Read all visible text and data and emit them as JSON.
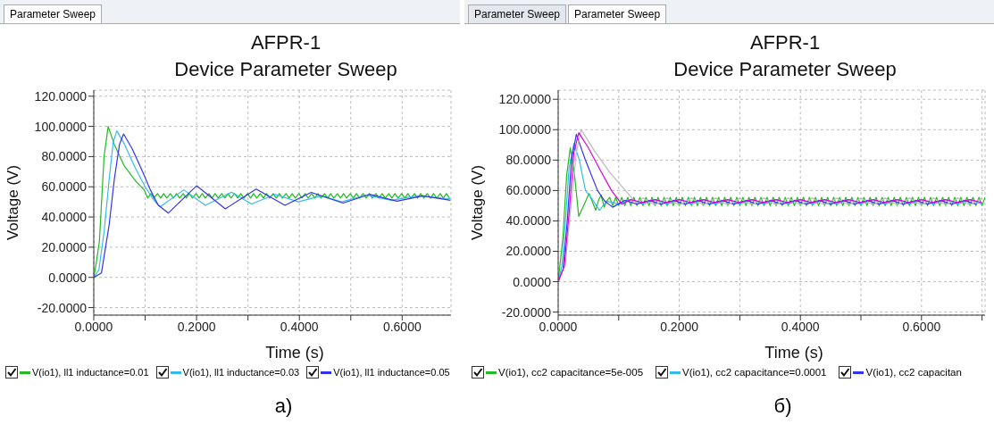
{
  "chart_data": [
    {
      "type": "line",
      "title": "AFPR-1",
      "subtitle": "Device Parameter Sweep",
      "xlabel": "Time (s)",
      "ylabel": "Voltage (V)",
      "annotations": [
        "Parameter Sweep",
        "а)"
      ],
      "xlim": [
        0,
        0.695
      ],
      "ylim": [
        -25,
        124
      ],
      "xticks": [
        {
          "value": 0,
          "label": "0.0000"
        },
        {
          "value": 0.1,
          "label": null
        },
        {
          "value": 0.2,
          "label": "0.2000"
        },
        {
          "value": 0.3,
          "label": null
        },
        {
          "value": 0.4,
          "label": "0.4000"
        },
        {
          "value": 0.5,
          "label": null
        },
        {
          "value": 0.6,
          "label": "0.6000"
        }
      ],
      "yticks": [
        {
          "value": -20,
          "label": "-20.0000"
        },
        {
          "value": 0,
          "label": "0.0000"
        },
        {
          "value": 20,
          "label": "20.0000"
        },
        {
          "value": 40,
          "label": "40.0000"
        },
        {
          "value": 60,
          "label": "60.0000"
        },
        {
          "value": 80,
          "label": "80.0000"
        },
        {
          "value": 100,
          "label": "100.0000"
        },
        {
          "value": 120,
          "label": "120.0000"
        }
      ],
      "grid": true,
      "legend": "bottom",
      "marker": "none",
      "line_style": "solid",
      "series": [
        {
          "name": "V(io1), ll1 inductance=0.01",
          "color": "#22bb22",
          "x": [
            0,
            0.005,
            0.011,
            0.02,
            0.028,
            0.04,
            0.059,
            0.081,
            0.098,
            0.105,
            0.111,
            0.117,
            0.124,
            0.13,
            0.136,
            0.142,
            0.149,
            0.155,
            0.161,
            0.167,
            0.174,
            0.18,
            0.186,
            0.192,
            0.199,
            0.205,
            0.211,
            0.217,
            0.224,
            0.23,
            0.236,
            0.242,
            0.249,
            0.255,
            0.261,
            0.267,
            0.274,
            0.28,
            0.286,
            0.292,
            0.299,
            0.305,
            0.311,
            0.317,
            0.324,
            0.33,
            0.336,
            0.342,
            0.349,
            0.355,
            0.361,
            0.367,
            0.374,
            0.38,
            0.386,
            0.392,
            0.399,
            0.405,
            0.411,
            0.417,
            0.424,
            0.43,
            0.436,
            0.442,
            0.449,
            0.455,
            0.461,
            0.467,
            0.474,
            0.48,
            0.486,
            0.492,
            0.499,
            0.505,
            0.511,
            0.517,
            0.524,
            0.53,
            0.536,
            0.542,
            0.549,
            0.555,
            0.561,
            0.567,
            0.574,
            0.58,
            0.586,
            0.592,
            0.599,
            0.605,
            0.611,
            0.617,
            0.624,
            0.63,
            0.636,
            0.642,
            0.649,
            0.655,
            0.661,
            0.667,
            0.674,
            0.68,
            0.686,
            0.692
          ],
          "values": [
            0,
            10,
            24,
            80,
            100,
            88,
            74,
            64,
            58,
            52.5,
            55.5,
            52.5,
            55.5,
            52.5,
            55.5,
            52.5,
            55.5,
            52.5,
            55.5,
            52.5,
            55.5,
            52.5,
            55.5,
            52.5,
            55.5,
            52.5,
            55.5,
            52.5,
            55.5,
            52.5,
            55.5,
            52.5,
            55.5,
            52.5,
            55.5,
            52.5,
            55.5,
            52.5,
            55.5,
            52.5,
            55.5,
            52.5,
            55.5,
            52.5,
            55.5,
            52.5,
            55.5,
            52.5,
            55.5,
            52.5,
            55.5,
            52.5,
            55.5,
            52.5,
            55.5,
            52.5,
            55.5,
            52.5,
            55.5,
            52.5,
            55.5,
            52.5,
            55.5,
            52.5,
            55.5,
            52.5,
            55.5,
            52.5,
            55.5,
            52.5,
            55.5,
            52.5,
            55.5,
            52.5,
            55.5,
            52.5,
            55.5,
            52.5,
            55.5,
            52.5,
            55.5,
            52.5,
            55.5,
            52.5,
            55.5,
            52.5,
            55.5,
            52.5,
            55.5,
            52.5,
            55.5,
            52.5,
            55.5,
            52.5,
            55.5,
            52.5,
            55.5,
            52.5,
            55.5,
            52.5,
            55.5,
            52.5,
            55.5,
            52.5
          ]
        },
        {
          "name": "V(io1), ll1 inductance=0.03",
          "color": "#33bbee",
          "x": [
            0,
            0.01,
            0.02,
            0.03,
            0.038,
            0.045,
            0.06,
            0.08,
            0.1,
            0.115,
            0.129,
            0.175,
            0.217,
            0.268,
            0.307,
            0.353,
            0.398,
            0.443,
            0.482,
            0.531,
            0.579,
            0.629,
            0.694
          ],
          "values": [
            0,
            5,
            30,
            65,
            90,
            97,
            88,
            73,
            60,
            52,
            46.7,
            58,
            47.7,
            56.5,
            48.6,
            55,
            50,
            54,
            50,
            54.5,
            51,
            54,
            52
          ]
        },
        {
          "name": "V(io1), ll1 inductance=0.05",
          "color": "#3333ee",
          "x": [
            0,
            0.015,
            0.03,
            0.04,
            0.05,
            0.058,
            0.075,
            0.095,
            0.11,
            0.125,
            0.145,
            0.2,
            0.256,
            0.316,
            0.372,
            0.423,
            0.485,
            0.536,
            0.59,
            0.64,
            0.694
          ],
          "values": [
            0,
            3,
            35,
            65,
            88,
            95,
            85,
            70,
            58,
            48,
            42.6,
            60.7,
            45.4,
            58.5,
            47.7,
            56.3,
            49.2,
            55,
            50.5,
            54,
            51
          ]
        }
      ]
    },
    {
      "type": "line",
      "title": "AFPR-1",
      "subtitle": "Device Parameter Sweep",
      "xlabel": "Time (s)",
      "ylabel": "Voltage (V)",
      "annotations": [
        "Parameter Sweep",
        "Parameter Sweep",
        "б)"
      ],
      "xlim": [
        0,
        0.705
      ],
      "ylim": [
        -22,
        126
      ],
      "xticks": [
        {
          "value": 0,
          "label": "0.0000"
        },
        {
          "value": 0.1,
          "label": null
        },
        {
          "value": 0.2,
          "label": "0.2000"
        },
        {
          "value": 0.3,
          "label": null
        },
        {
          "value": 0.4,
          "label": "0.4000"
        },
        {
          "value": 0.5,
          "label": null
        },
        {
          "value": 0.6,
          "label": "0.6000"
        },
        {
          "value": 0.7,
          "label": null
        }
      ],
      "yticks": [
        {
          "value": -20,
          "label": "-20.0000"
        },
        {
          "value": 0,
          "label": "0.0000"
        },
        {
          "value": 20,
          "label": "20.0000"
        },
        {
          "value": 40,
          "label": "40.0000"
        },
        {
          "value": 60,
          "label": "60.0000"
        },
        {
          "value": 80,
          "label": "80.0000"
        },
        {
          "value": 100,
          "label": "100.0000"
        },
        {
          "value": 120,
          "label": "120.0000"
        }
      ],
      "grid": true,
      "legend": "bottom",
      "marker": "none",
      "line_style": "solid",
      "series": [
        {
          "name": "V(io1), cc2 capacitance=5e-005",
          "color": "#22bb22",
          "x": [
            0,
            0.008,
            0.014,
            0.02,
            0.027,
            0.034,
            0.042,
            0.051,
            0.057,
            0.062,
            0.067,
            0.071,
            0.076,
            0.08,
            0.085,
            0.09,
            0.095,
            0.1,
            0.105,
            0.11,
            0.115,
            0.12,
            0.125,
            0.13,
            0.135,
            0.14,
            0.145,
            0.15,
            0.155,
            0.16,
            0.165,
            0.17,
            0.175,
            0.18,
            0.185,
            0.19,
            0.195,
            0.2,
            0.205,
            0.21,
            0.215,
            0.22,
            0.225,
            0.23,
            0.235,
            0.24,
            0.245,
            0.25,
            0.255,
            0.26,
            0.265,
            0.27,
            0.275,
            0.28,
            0.285,
            0.29,
            0.295,
            0.3,
            0.305,
            0.31,
            0.315,
            0.32,
            0.325,
            0.33,
            0.335,
            0.34,
            0.345,
            0.35,
            0.355,
            0.36,
            0.365,
            0.37,
            0.375,
            0.38,
            0.385,
            0.39,
            0.395,
            0.4,
            0.405,
            0.41,
            0.415,
            0.42,
            0.425,
            0.43,
            0.435,
            0.44,
            0.445,
            0.45,
            0.455,
            0.46,
            0.465,
            0.47,
            0.475,
            0.48,
            0.485,
            0.49,
            0.495,
            0.5,
            0.505,
            0.51,
            0.515,
            0.52,
            0.525,
            0.53,
            0.535,
            0.54,
            0.545,
            0.55,
            0.555,
            0.56,
            0.565,
            0.57,
            0.575,
            0.58,
            0.585,
            0.59,
            0.595,
            0.6,
            0.605,
            0.61,
            0.615,
            0.62,
            0.625,
            0.63,
            0.635,
            0.64,
            0.645,
            0.65,
            0.655,
            0.66,
            0.665,
            0.67,
            0.675,
            0.68,
            0.685,
            0.69,
            0.695,
            0.7,
            0.705
          ],
          "values": [
            0,
            30,
            70,
            88,
            70,
            43,
            50,
            58,
            52,
            47,
            54,
            57,
            49,
            53,
            55.5,
            50,
            55.5,
            50,
            55.5,
            50,
            55.5,
            50,
            55.5,
            50,
            55.5,
            50,
            55.5,
            50,
            55.5,
            50,
            55.5,
            50,
            55.5,
            50,
            55.5,
            50,
            55.5,
            50,
            55.5,
            50,
            55.5,
            50,
            55.5,
            50,
            55.5,
            50,
            55.5,
            50,
            55.5,
            50,
            55.5,
            50,
            55.5,
            50,
            55.5,
            50,
            55.5,
            50,
            55.5,
            50,
            55.5,
            50,
            55.5,
            50,
            55.5,
            50,
            55.5,
            50,
            55.5,
            50,
            55.5,
            50,
            55.5,
            50,
            55.5,
            50,
            55.5,
            50,
            55.5,
            50,
            55.5,
            50,
            55.5,
            50,
            55.5,
            50,
            55.5,
            50,
            55.5,
            50,
            55.5,
            50,
            55.5,
            50,
            55.5,
            50,
            55.5,
            50,
            55.5,
            50,
            55.5,
            50,
            55.5,
            50,
            55.5,
            50,
            55.5,
            50,
            55.5,
            50,
            55.5,
            50,
            55.5,
            50,
            55.5,
            50,
            55.5,
            50,
            55.5,
            50,
            55.5,
            50,
            55.5,
            50,
            55.5,
            50,
            55.5,
            50,
            55.5,
            50,
            55.5,
            50,
            55.5,
            50,
            55.5,
            50,
            55.5,
            50,
            55.5
          ]
        },
        {
          "name": "V(io1), cc2 capacitance=0.0001",
          "color": "#33bbee",
          "x": [
            0,
            0.006,
            0.012,
            0.018,
            0.026,
            0.035,
            0.045,
            0.055,
            0.068,
            0.08,
            0.1,
            0.12,
            0.14,
            0.16,
            0.18,
            0.2,
            0.22,
            0.24,
            0.26,
            0.28,
            0.3,
            0.32,
            0.34,
            0.36,
            0.38,
            0.4,
            0.42,
            0.44,
            0.46,
            0.48,
            0.5,
            0.52,
            0.54,
            0.56,
            0.58,
            0.6,
            0.62,
            0.64,
            0.66,
            0.68,
            0.7
          ],
          "values": [
            0,
            10,
            40,
            75,
            91,
            80,
            60,
            55,
            47,
            53,
            51,
            54,
            51,
            54,
            51,
            54,
            51,
            54,
            51,
            54,
            51,
            54,
            51,
            54,
            51,
            54,
            51,
            54,
            51,
            54,
            51,
            54,
            51,
            54,
            51,
            54,
            51,
            54,
            51,
            54,
            51
          ]
        },
        {
          "name": "V(io1), cc2 capacitan",
          "color": "#3333ee",
          "x": [
            0,
            0.008,
            0.015,
            0.022,
            0.03,
            0.045,
            0.065,
            0.077,
            0.09,
            0.11,
            0.13,
            0.15,
            0.17,
            0.19,
            0.21,
            0.23,
            0.25,
            0.27,
            0.29,
            0.31,
            0.33,
            0.35,
            0.37,
            0.39,
            0.41,
            0.43,
            0.45,
            0.47,
            0.49,
            0.51,
            0.53,
            0.55,
            0.57,
            0.59,
            0.61,
            0.63,
            0.65,
            0.67,
            0.69
          ],
          "values": [
            0,
            8,
            40,
            80,
            97,
            80,
            60,
            53,
            49,
            53.5,
            51,
            53.5,
            51,
            53.5,
            51,
            53.5,
            51,
            53.5,
            51,
            53.5,
            51,
            53.5,
            51,
            53.5,
            51,
            53.5,
            51,
            53.5,
            51,
            53.5,
            51,
            53.5,
            51,
            53.5,
            51,
            53.5,
            51,
            53.5,
            51
          ]
        },
        {
          "color": "#bbbbbb",
          "x": [
            0,
            0.012,
            0.02,
            0.03,
            0.038,
            0.06,
            0.085,
            0.111,
            0.128,
            0.14,
            0.16,
            0.18,
            0.2,
            0.22,
            0.24,
            0.26,
            0.28,
            0.3,
            0.32,
            0.34,
            0.36,
            0.38,
            0.4,
            0.42,
            0.44,
            0.46,
            0.48,
            0.5,
            0.52,
            0.54,
            0.56,
            0.58,
            0.6,
            0.62,
            0.64,
            0.66,
            0.68,
            0.7
          ],
          "values": [
            0,
            12,
            45,
            85,
            100,
            86,
            72,
            60,
            52,
            55,
            50.5,
            55,
            50.5,
            55,
            50.5,
            55,
            50.5,
            55,
            50.5,
            55,
            50.5,
            55,
            50.5,
            55,
            50.5,
            55,
            50.5,
            55,
            50.5,
            55,
            50.5,
            55,
            50.5,
            55,
            50.5,
            55,
            50.5,
            55
          ]
        },
        {
          "color": "#dd00dd",
          "x": [
            0,
            0.01,
            0.018,
            0.026,
            0.034,
            0.05,
            0.07,
            0.088,
            0.105,
            0.12,
            0.14,
            0.16,
            0.18,
            0.2,
            0.22,
            0.24,
            0.26,
            0.28,
            0.3,
            0.32,
            0.34,
            0.36,
            0.38,
            0.4,
            0.42,
            0.44,
            0.46,
            0.48,
            0.5,
            0.52,
            0.54,
            0.56,
            0.58,
            0.6,
            0.62,
            0.64,
            0.66,
            0.68,
            0.7
          ],
          "values": [
            0,
            10,
            45,
            85,
            98,
            88,
            73,
            60,
            51,
            54,
            52,
            54,
            52,
            54,
            52,
            54,
            52,
            54,
            52,
            54,
            52,
            54,
            52,
            54,
            52,
            54,
            52,
            54,
            52,
            54,
            52,
            54,
            52,
            54,
            52,
            54,
            52,
            54,
            52
          ]
        }
      ]
    }
  ]
}
